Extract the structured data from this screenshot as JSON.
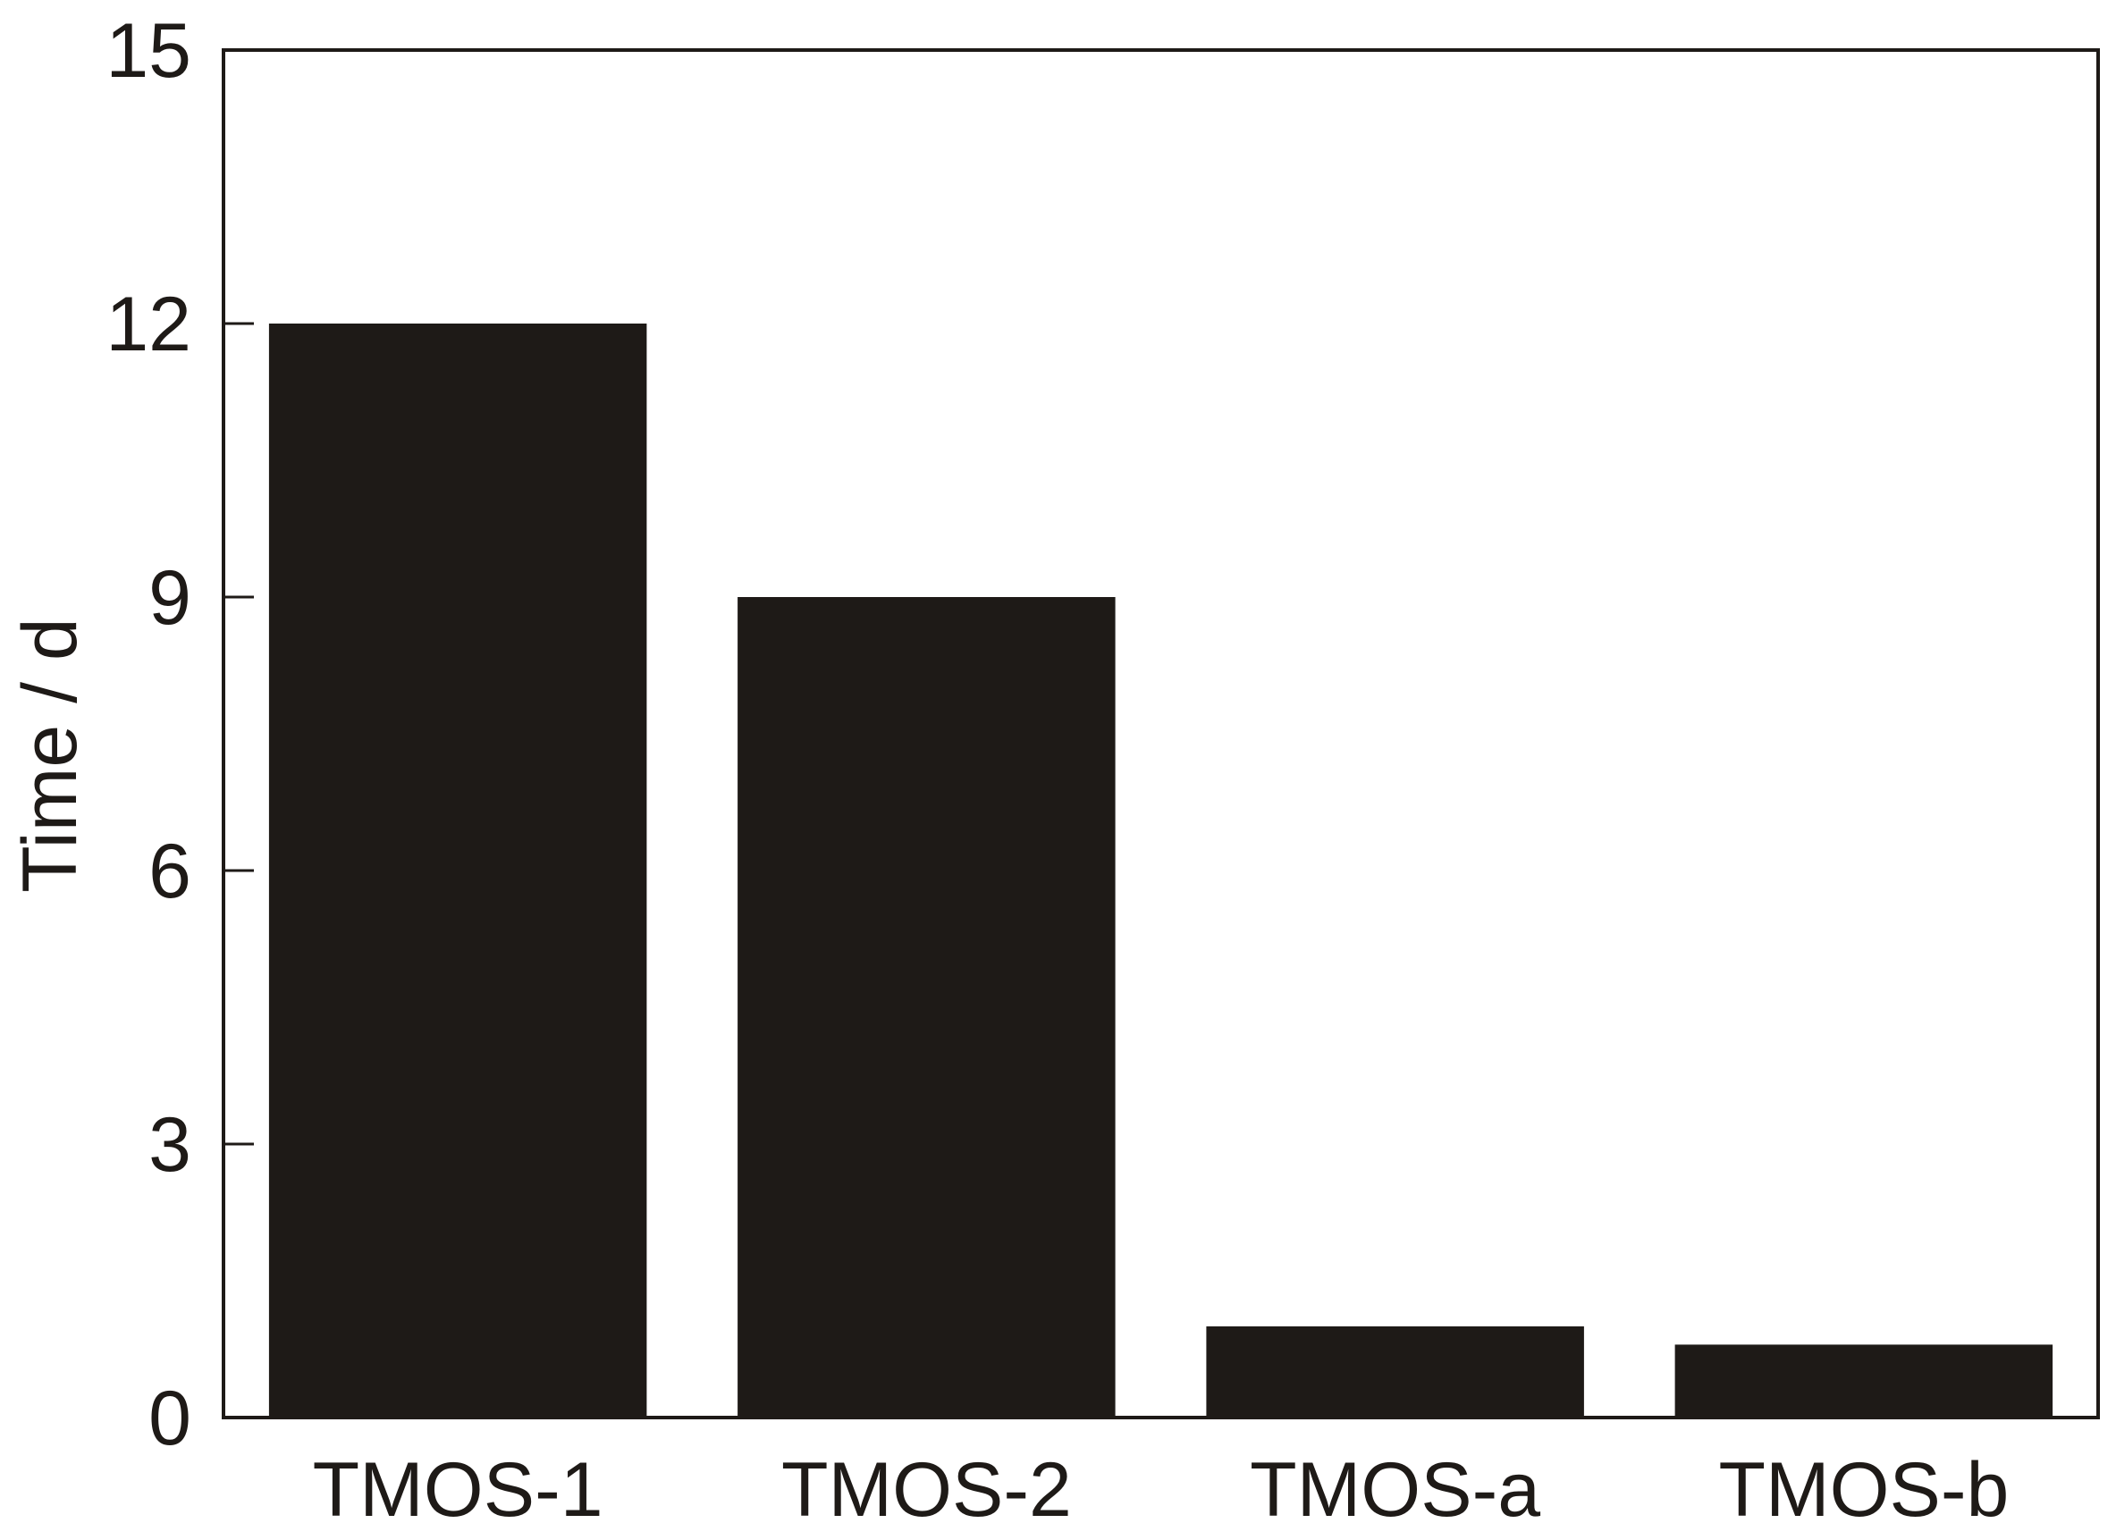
{
  "chart_data": {
    "type": "bar",
    "categories": [
      "TMOS-1",
      "TMOS-2",
      "TMOS-a",
      "TMOS-b"
    ],
    "values": [
      12,
      9,
      1,
      0.8
    ],
    "xlabel": "",
    "ylabel": "Time / d",
    "ylim": [
      0,
      15
    ],
    "yticks": [
      "0",
      "3",
      "6",
      "9",
      "12",
      "15"
    ],
    "grid": false,
    "legend": "none",
    "bar_color": "#1e1a17",
    "axis_color": "#1e1a17"
  }
}
